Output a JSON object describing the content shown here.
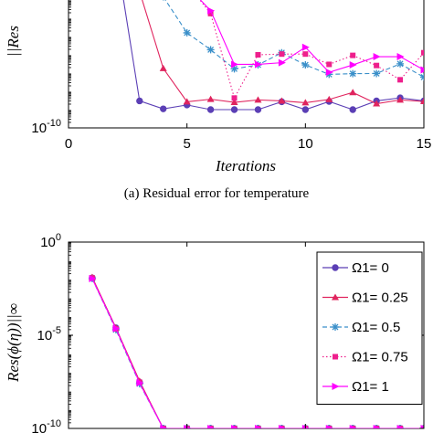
{
  "caption_a": "(a)  Residual error for temperature",
  "chart_data": [
    {
      "type": "line",
      "panel": "a",
      "xlabel": "Iterations",
      "ylabel_visible": "||Res",
      "yscale": "log",
      "xlim": [
        0,
        15
      ],
      "ylim_visible": [
        1e-10,
        0.01
      ],
      "x_ticks": [
        "0",
        "5",
        "10",
        "15"
      ],
      "y_ticks": [
        {
          "base": "10",
          "exp": "-10"
        }
      ],
      "series": [
        {
          "color": "#5b3fb5",
          "marker": "circle",
          "dash": "solid",
          "x": [
            2.2,
            3,
            4,
            5,
            6,
            7,
            8,
            9,
            10,
            11,
            12,
            13,
            14,
            15
          ],
          "y": [
            0.01,
            3e-09,
            1.1e-09,
            1.8e-09,
            1e-09,
            1e-09,
            1e-09,
            2.7e-09,
            1e-09,
            2.8e-09,
            1e-09,
            3e-09,
            4.4e-09,
            3e-09
          ]
        },
        {
          "color": "#e0245e",
          "marker": "triangle",
          "dash": "solid",
          "x": [
            2.8,
            3,
            4,
            5,
            6,
            7,
            8,
            9,
            10,
            11,
            12,
            13,
            14,
            15
          ],
          "y": [
            0.01,
            0.0029,
            1.8e-07,
            2.7e-09,
            3.7e-09,
            2.5e-09,
            3.4e-09,
            3e-09,
            2.4e-09,
            3.6e-09,
            8.7e-09,
            2.1e-09,
            3.4e-09,
            2.8e-09
          ]
        },
        {
          "color": "#3a8fc9",
          "marker": "star",
          "dash": "dashed",
          "x": [
            4,
            5,
            6,
            7,
            8,
            9,
            10,
            11,
            12,
            13,
            14,
            15
          ],
          "y": [
            0.0015,
            1.6e-05,
            1.9e-06,
            1.7e-07,
            2.8e-07,
            1.3e-06,
            2.8e-07,
            8.5e-08,
            9.3e-08,
            9.5e-08,
            3.2e-07,
            6e-08
          ]
        },
        {
          "color": "#ee1f8c",
          "marker": "square",
          "dash": "dotted",
          "x": [
            5,
            6,
            7,
            8,
            9,
            10,
            11,
            12,
            13,
            14,
            15
          ],
          "y": [
            0.0082,
            0.00018,
            4.3e-09,
            1e-06,
            1.1e-06,
            1.1e-06,
            3e-07,
            9.3e-07,
            2.6e-07,
            4.3e-08,
            1.3e-06
          ]
        },
        {
          "color": "#ff00ff",
          "marker": "triangle-right",
          "dash": "solid",
          "x": [
            5,
            6,
            7,
            8,
            9,
            10,
            11,
            12,
            13,
            14,
            15
          ],
          "y": [
            0.006,
            0.00026,
            3e-07,
            3e-07,
            3.7e-07,
            2.6e-06,
            1.1e-07,
            2.8e-07,
            7.9e-07,
            7.9e-07,
            1.5e-07
          ]
        }
      ]
    },
    {
      "type": "line",
      "panel": "b",
      "ylabel_visible": "Res(ϕ(η))||∞",
      "yscale": "log",
      "xlim": [
        0,
        15
      ],
      "ylim_visible": [
        1e-10,
        1.0
      ],
      "y_ticks": [
        {
          "base": "10",
          "exp": "0"
        },
        {
          "base": "10",
          "exp": "-5"
        },
        {
          "base": "10",
          "exp": "-10"
        }
      ],
      "legend_position": "right",
      "series": [
        {
          "name": "Ω1=   0",
          "color": "#5b3fb5",
          "marker": "circle",
          "dash": "solid",
          "x": [
            1,
            2,
            3,
            4,
            5,
            6,
            7,
            8,
            9,
            10,
            11,
            12,
            13,
            14,
            15
          ],
          "y": [
            0.012,
            2.5e-05,
            3e-08,
            1e-10,
            1e-10,
            1e-10,
            1e-10,
            1e-10,
            1e-10,
            1e-10,
            1e-10,
            1e-10,
            1e-10,
            1e-10,
            1e-10
          ]
        },
        {
          "name": "Ω1= 0.25",
          "color": "#e0245e",
          "marker": "triangle",
          "dash": "solid",
          "x": [
            1,
            2,
            3,
            4,
            5,
            6,
            7,
            8,
            9,
            10,
            11,
            12,
            13,
            14,
            15
          ],
          "y": [
            0.013,
            2.5e-05,
            3.5e-08,
            1e-10,
            1e-10,
            1e-10,
            1e-10,
            1e-10,
            1e-10,
            1e-10,
            1e-10,
            1e-10,
            1e-10,
            1e-10,
            1e-10
          ]
        },
        {
          "name": "Ω1= 0.5",
          "color": "#3a8fc9",
          "marker": "star",
          "dash": "dashed",
          "x": [
            1,
            2,
            3,
            4,
            5,
            6,
            7,
            8,
            9,
            10,
            11,
            12,
            13,
            14,
            15
          ],
          "y": [
            0.011,
            2e-05,
            2.5e-08,
            1e-10,
            1e-10,
            1e-10,
            1e-10,
            1e-10,
            1e-10,
            1e-10,
            1e-10,
            1e-10,
            1e-10,
            1e-10,
            1e-10
          ]
        },
        {
          "name": "Ω1= 0.75",
          "color": "#ee1f8c",
          "marker": "square",
          "dash": "dotted",
          "x": [
            1,
            2,
            3,
            4,
            5,
            6,
            7,
            8,
            9,
            10,
            11,
            12,
            13,
            14,
            15
          ],
          "y": [
            0.012,
            2.2e-05,
            3e-08,
            1e-10,
            1e-10,
            1e-10,
            1e-10,
            1e-10,
            1e-10,
            1e-10,
            1e-10,
            1e-10,
            1e-10,
            1e-10,
            1e-10
          ]
        },
        {
          "name": "Ω1=   1",
          "color": "#ff00ff",
          "marker": "triangle-right",
          "dash": "solid",
          "x": [
            1,
            2,
            3,
            4,
            5,
            6,
            7,
            8,
            9,
            10,
            11,
            12,
            13,
            14,
            15
          ],
          "y": [
            0.011,
            2.3e-05,
            2.8e-08,
            1e-10,
            1e-10,
            1e-10,
            1e-10,
            1e-10,
            1e-10,
            1e-10,
            1e-10,
            1e-10,
            1e-10,
            1e-10,
            1e-10
          ]
        }
      ]
    }
  ]
}
